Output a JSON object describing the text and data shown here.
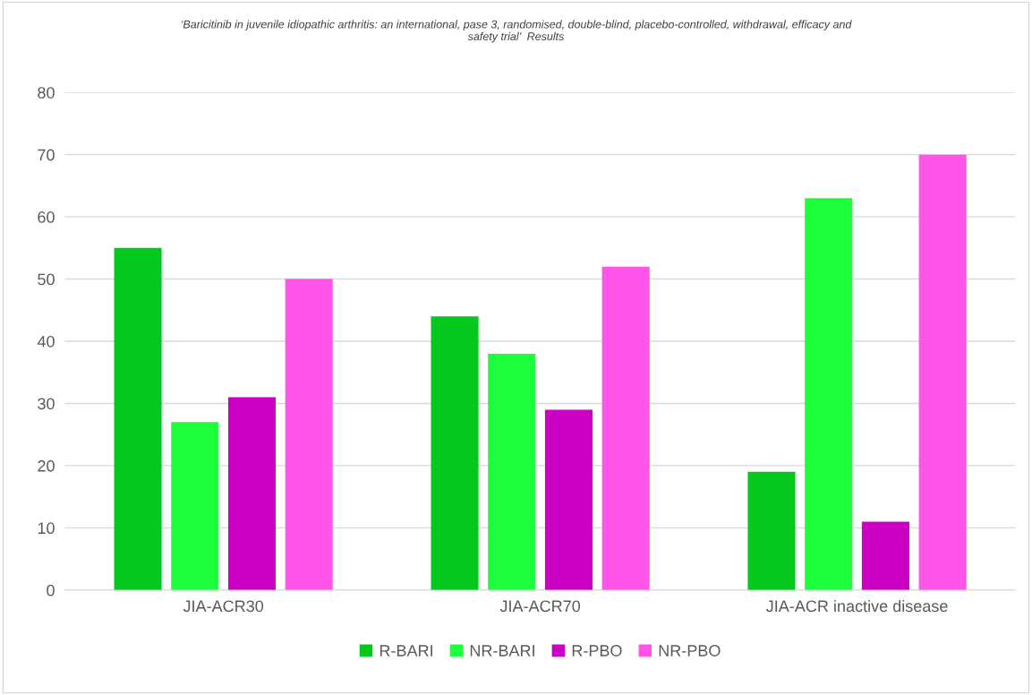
{
  "chart_data": {
    "type": "bar",
    "title": "‘Baricitinib in juvenile idiopathic arthritis: an international, pase 3, randomised, double-blind, placebo-controlled, withdrawal, efficacy and\nsafety trial’  Results",
    "categories": [
      "JIA-ACR30",
      "JIA-ACR70",
      "JIA-ACR inactive disease"
    ],
    "series": [
      {
        "name": "R-BARI",
        "color": "#05c81e",
        "values": [
          55,
          44,
          19
        ]
      },
      {
        "name": "NR-BARI",
        "color": "#1cff3a",
        "values": [
          27,
          38,
          63
        ]
      },
      {
        "name": "R-PBO",
        "color": "#cc00c2",
        "values": [
          31,
          29,
          11
        ]
      },
      {
        "name": "NR-PBO",
        "color": "#ff55e8",
        "values": [
          50,
          52,
          70
        ]
      }
    ],
    "ylim": [
      0,
      80
    ],
    "yticks": [
      0,
      10,
      20,
      30,
      40,
      50,
      60,
      70,
      80
    ],
    "grid": "y",
    "legend": "bottom"
  }
}
